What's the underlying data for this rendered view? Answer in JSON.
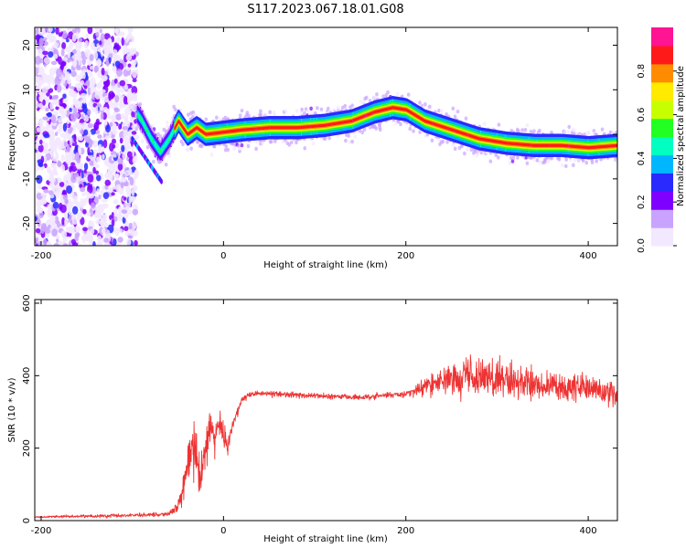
{
  "title": "S117.2023.067.18.01.G08",
  "chart_data": [
    {
      "type": "heatmap",
      "xlabel": "Height of straight line (km)",
      "ylabel": "Frequency (Hz)",
      "xlim": [
        -207,
        432
      ],
      "ylim": [
        -25,
        24
      ],
      "xticks": [
        -200,
        0,
        200,
        400
      ],
      "yticks": [
        -20,
        -10,
        0,
        10,
        20
      ],
      "colorbar": {
        "label": "Normalized spectral amplitude",
        "range": [
          0,
          1
        ],
        "ticks": [
          "0.0",
          "0.2",
          "0.4",
          "0.6",
          "0.8"
        ],
        "colors": [
          "#f2e8ff",
          "#c9a3ff",
          "#7f00ff",
          "#2a2aff",
          "#00b7ff",
          "#00ffc0",
          "#22ff22",
          "#c8ff00",
          "#ffea00",
          "#ff8c00",
          "#ff1a1a",
          "#ff1493"
        ]
      },
      "ridge": {
        "x": [
          -100,
          -90,
          -80,
          -70,
          -60,
          -50,
          -40,
          -30,
          -20,
          0,
          20,
          50,
          80,
          110,
          140,
          165,
          185,
          200,
          220,
          250,
          280,
          310,
          340,
          370,
          400,
          432
        ],
        "freq_hz": [
          6,
          3,
          -1,
          -4,
          -1,
          3,
          0,
          1.5,
          0,
          0.5,
          1,
          1.5,
          1.5,
          2,
          3,
          5,
          6,
          5.5,
          3,
          1,
          -1,
          -2,
          -2.5,
          -2.5,
          -3,
          -2.5
        ]
      },
      "noise_region_km": [
        -207,
        -95
      ]
    },
    {
      "type": "line",
      "xlabel": "Height of straight line (km)",
      "ylabel": "SNR (10 * v/v)",
      "xlim": [
        -207,
        432
      ],
      "ylim": [
        0,
        610
      ],
      "xticks": [
        -200,
        0,
        200,
        400
      ],
      "yticks": [
        0,
        200,
        400,
        600
      ],
      "color": "#ee3333",
      "series": [
        {
          "name": "SNR",
          "x": [
            -207,
            -150,
            -100,
            -60,
            -50,
            -45,
            -40,
            -35,
            -30,
            -25,
            -20,
            -15,
            -10,
            -5,
            0,
            5,
            10,
            20,
            30,
            50,
            100,
            150,
            200,
            210,
            230,
            250,
            270,
            300,
            350,
            400,
            432
          ],
          "y": [
            10,
            12,
            15,
            18,
            40,
            80,
            150,
            200,
            180,
            120,
            190,
            260,
            220,
            280,
            230,
            210,
            260,
            330,
            350,
            350,
            345,
            340,
            350,
            360,
            380,
            390,
            400,
            385,
            370,
            365,
            350
          ],
          "spread": [
            4,
            8,
            8,
            10,
            30,
            60,
            90,
            110,
            120,
            120,
            110,
            100,
            90,
            70,
            50,
            40,
            30,
            20,
            15,
            14,
            12,
            12,
            14,
            25,
            55,
            80,
            95,
            85,
            70,
            65,
            60
          ]
        }
      ]
    }
  ]
}
